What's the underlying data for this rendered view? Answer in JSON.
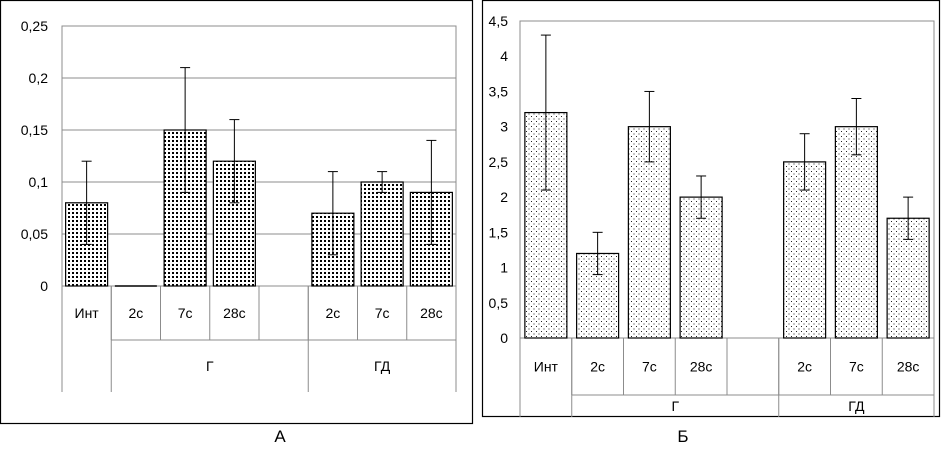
{
  "chart_data": [
    {
      "type": "bar",
      "panel_label": "А",
      "categories": [
        "Инт",
        "2с",
        "7с",
        "28с",
        "",
        "2с",
        "7с",
        "28с"
      ],
      "groups": [
        {
          "label": "",
          "span": 1
        },
        {
          "label": "Г",
          "span": 4
        },
        {
          "label": "ГД",
          "span": 3
        }
      ],
      "values": [
        0.08,
        0.0,
        0.15,
        0.12,
        null,
        0.07,
        0.1,
        0.09
      ],
      "errors": [
        0.04,
        0.0,
        0.06,
        0.04,
        null,
        0.04,
        0.01,
        0.05
      ],
      "ylim": [
        0,
        0.25
      ],
      "yticks": [
        "0",
        "0,05",
        "0,1",
        "0,15",
        "0,2",
        "0,25"
      ],
      "grid": true,
      "pattern": "dense-dots"
    },
    {
      "type": "bar",
      "panel_label": "Б",
      "categories": [
        "Инт",
        "2с",
        "7с",
        "28с",
        "",
        "2с",
        "7с",
        "28с"
      ],
      "groups": [
        {
          "label": "",
          "span": 1
        },
        {
          "label": "Г",
          "span": 4
        },
        {
          "label": "ГД",
          "span": 3
        }
      ],
      "values": [
        3.2,
        1.2,
        3.0,
        2.0,
        null,
        2.5,
        3.0,
        1.7
      ],
      "errors": [
        1.1,
        0.3,
        0.5,
        0.3,
        null,
        0.4,
        0.4,
        0.3
      ],
      "ylim": [
        0,
        4.5
      ],
      "yticks": [
        "0",
        "0,5",
        "1",
        "1,5",
        "2",
        "2,5",
        "3",
        "3,5",
        "4",
        "4,5"
      ],
      "grid": false,
      "pattern": "sparse-dots"
    }
  ]
}
